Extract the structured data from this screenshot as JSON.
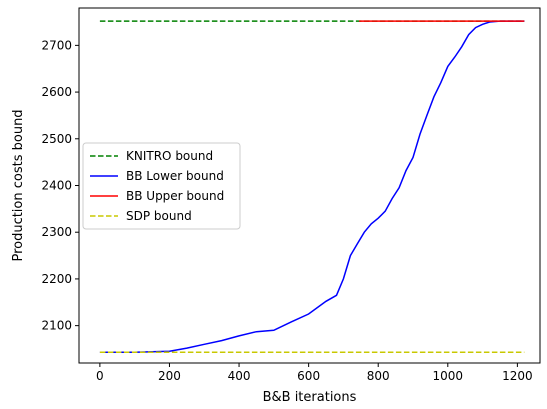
{
  "chart_data": {
    "type": "line",
    "xlabel": "B&B iterations",
    "ylabel": "Production costs bound",
    "xlim": [
      -60,
      1265
    ],
    "ylim": [
      2020,
      2780
    ],
    "xticks": [
      0,
      200,
      400,
      600,
      800,
      1000,
      1200
    ],
    "yticks": [
      2100,
      2200,
      2300,
      2400,
      2500,
      2600,
      2700
    ],
    "legend_position": "center-left",
    "series": [
      {
        "name": "KNITRO bound",
        "color": "#008000",
        "dash": "dashed",
        "x": [
          0,
          1220
        ],
        "y": [
          2752,
          2752
        ]
      },
      {
        "name": "BB Lower bound",
        "color": "#0000ff",
        "dash": "solid",
        "x": [
          0,
          100,
          150,
          200,
          250,
          300,
          350,
          400,
          450,
          500,
          550,
          600,
          650,
          680,
          700,
          720,
          740,
          760,
          780,
          800,
          820,
          840,
          860,
          880,
          900,
          920,
          940,
          960,
          980,
          1000,
          1020,
          1040,
          1060,
          1080,
          1100,
          1120,
          1150,
          1220
        ],
        "y": [
          2043,
          2043,
          2044,
          2045,
          2052,
          2060,
          2068,
          2078,
          2087,
          2090,
          2108,
          2125,
          2152,
          2165,
          2200,
          2250,
          2275,
          2300,
          2318,
          2330,
          2345,
          2372,
          2395,
          2432,
          2460,
          2510,
          2550,
          2590,
          2620,
          2655,
          2675,
          2697,
          2723,
          2738,
          2745,
          2750,
          2752,
          2752
        ]
      },
      {
        "name": "BB Upper bound",
        "color": "#ff0000",
        "dash": "solid",
        "x": [
          745,
          1220
        ],
        "y": [
          2752,
          2752
        ]
      },
      {
        "name": "SDP bound",
        "color": "#c8c800",
        "dash": "dashed",
        "x": [
          0,
          1220
        ],
        "y": [
          2043,
          2043
        ]
      }
    ]
  }
}
